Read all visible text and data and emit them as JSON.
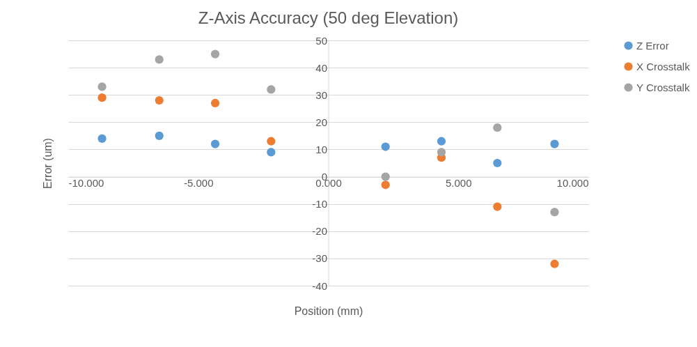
{
  "chart_data": {
    "type": "scatter",
    "title": "Z-Axis Accuracy (50 deg Elevation)",
    "xlabel": "Position (mm)",
    "ylabel": "Error (um)",
    "x": [
      -8.7,
      -6.5,
      -4.35,
      -2.2,
      2.2,
      4.35,
      6.5,
      8.7
    ],
    "series": [
      {
        "name": "Z Error",
        "color": "#5b9bd5",
        "values": [
          14,
          15,
          12,
          9,
          11,
          13,
          5,
          12
        ]
      },
      {
        "name": "X Crosstalk",
        "color": "#ed7d31",
        "values": [
          29,
          28,
          27,
          13,
          -3,
          7,
          -11,
          -32
        ]
      },
      {
        "name": "Y Crosstalk",
        "color": "#a5a5a5",
        "values": [
          33,
          43,
          45,
          32,
          0,
          9,
          18,
          -13
        ]
      }
    ],
    "xlim": [
      -10,
      10
    ],
    "xticks": [
      {
        "value": -10,
        "label": "-10.000"
      },
      {
        "value": -5,
        "label": "-5.000"
      },
      {
        "value": 0,
        "label": "0.000"
      },
      {
        "value": 5,
        "label": "5.000"
      },
      {
        "value": 10,
        "label": "10.000"
      }
    ],
    "ylim": [
      -40,
      50
    ],
    "yticks": [
      -40,
      -30,
      -20,
      -10,
      0,
      10,
      20,
      30,
      40,
      50
    ],
    "grid": "y",
    "legend": "right",
    "marker": "circle"
  }
}
